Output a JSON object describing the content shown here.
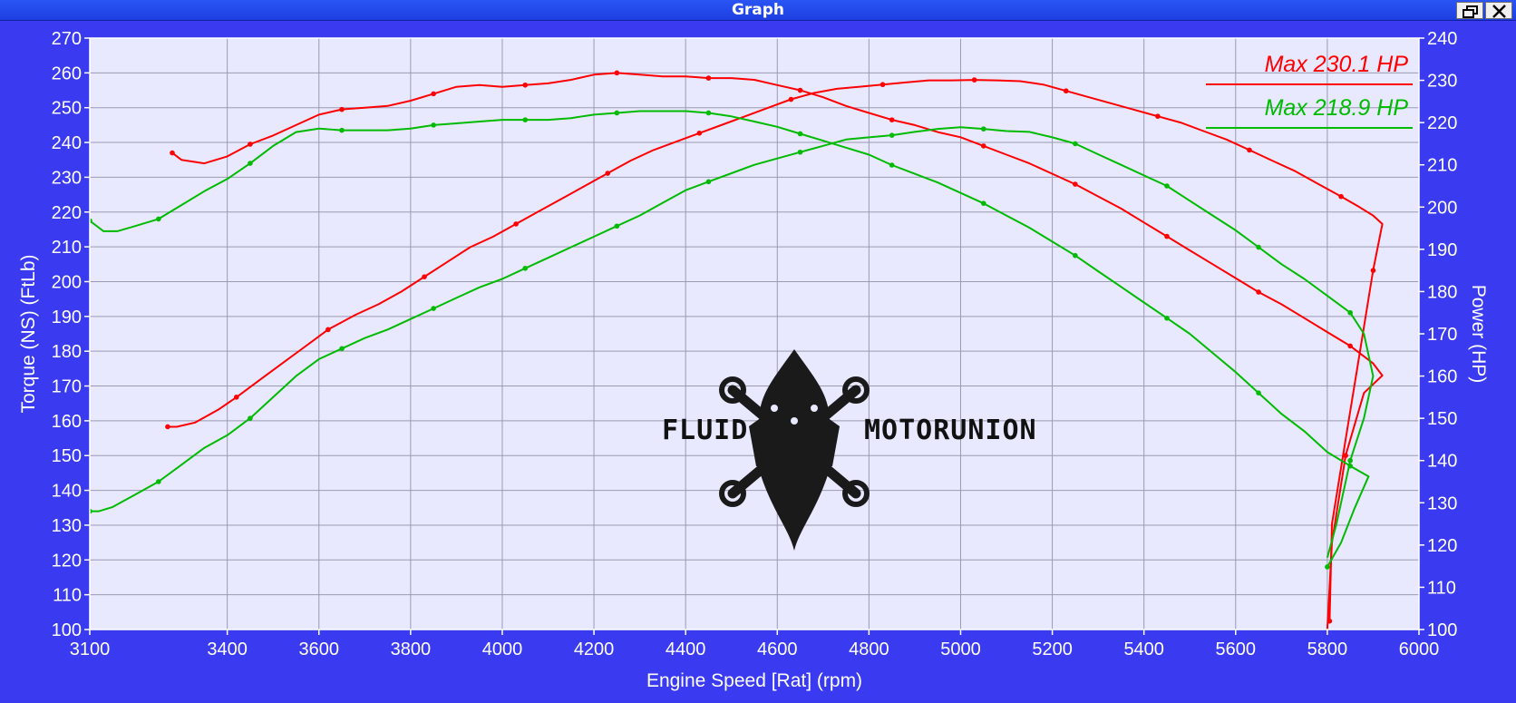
{
  "window": {
    "title": "Graph",
    "buttons": [
      {
        "name": "restore-button",
        "icon": "restore-icon"
      },
      {
        "name": "close-button",
        "icon": "close-icon"
      }
    ]
  },
  "watermark": {
    "left": "FLUID",
    "right": "MOTORUNION",
    "icon": "wrench-crown-logo-icon"
  },
  "chart_data": {
    "type": "line",
    "background": "#e8e8ff",
    "grid": true,
    "xlabel": "Engine Speed [Rat] (rpm)",
    "ylabel": "Torque (NS) (FtLb)",
    "y2label": "Power (HP)",
    "xlim": [
      3100,
      6000
    ],
    "ylim": [
      100,
      270
    ],
    "y2lim": [
      100,
      240
    ],
    "xticks": [
      3100,
      3400,
      3600,
      3800,
      4000,
      4200,
      4400,
      4600,
      4800,
      5000,
      5200,
      5400,
      5600,
      5800,
      6000
    ],
    "yticks": [
      100,
      110,
      120,
      130,
      140,
      150,
      160,
      170,
      180,
      190,
      200,
      210,
      220,
      230,
      240,
      250,
      260,
      270
    ],
    "y2ticks": [
      100,
      110,
      120,
      130,
      140,
      150,
      160,
      170,
      180,
      190,
      200,
      210,
      220,
      230,
      240
    ],
    "legend_position": "top-right",
    "legend": [
      {
        "label": "Max 230.1 HP",
        "color": "#ff0000"
      },
      {
        "label": "Max 218.9 HP",
        "color": "#00bb00"
      }
    ],
    "series": [
      {
        "color": "#ff0000",
        "quantity": "torque",
        "axis": "left",
        "x": [
          3280,
          3300,
          3350,
          3400,
          3450,
          3500,
          3550,
          3600,
          3650,
          3700,
          3750,
          3800,
          3850,
          3900,
          3950,
          4000,
          4050,
          4100,
          4150,
          4200,
          4250,
          4300,
          4350,
          4400,
          4450,
          4500,
          4550,
          4600,
          4650,
          4700,
          4750,
          4800,
          4850,
          4900,
          4950,
          5000,
          5050,
          5100,
          5150,
          5200,
          5250,
          5300,
          5350,
          5400,
          5450,
          5500,
          5550,
          5600,
          5650,
          5700,
          5750,
          5800,
          5850,
          5900,
          5920,
          5880,
          5840,
          5810,
          5800
        ],
        "y": [
          237,
          235,
          234,
          236,
          239.5,
          242,
          245,
          248,
          249.5,
          250,
          250.5,
          252,
          254,
          256,
          256.5,
          256,
          256.5,
          257,
          258,
          259.5,
          260,
          259.5,
          259,
          259,
          258.5,
          258.5,
          258,
          256.5,
          255,
          253,
          250.5,
          248.5,
          246.5,
          245,
          243,
          241.5,
          239,
          236.5,
          234,
          231,
          228,
          224.5,
          221,
          217,
          213,
          209,
          205,
          201,
          197,
          193.5,
          189.5,
          185.5,
          181.5,
          176.5,
          173,
          168,
          150,
          125,
          100
        ]
      },
      {
        "color": "#ff0000",
        "quantity": "power",
        "axis": "right",
        "x": [
          3270,
          3290,
          3330,
          3380,
          3420,
          3470,
          3520,
          3570,
          3620,
          3680,
          3730,
          3780,
          3830,
          3880,
          3930,
          3980,
          4030,
          4080,
          4130,
          4180,
          4230,
          4280,
          4330,
          4380,
          4430,
          4480,
          4530,
          4580,
          4630,
          4680,
          4730,
          4780,
          4830,
          4880,
          4930,
          4980,
          5030,
          5080,
          5130,
          5180,
          5230,
          5280,
          5330,
          5380,
          5430,
          5480,
          5530,
          5580,
          5630,
          5680,
          5730,
          5780,
          5830,
          5870,
          5900,
          5920,
          5900,
          5870,
          5840,
          5810,
          5805
        ],
        "y": [
          148,
          148,
          149,
          152,
          155,
          159,
          163,
          167,
          171,
          174.5,
          177,
          180,
          183.5,
          187,
          190.5,
          193,
          196,
          199,
          202,
          205,
          208,
          211,
          213.5,
          215.5,
          217.5,
          219.5,
          221.5,
          223.5,
          225.5,
          227,
          228,
          228.5,
          229,
          229.5,
          230,
          230,
          230.1,
          230,
          229.8,
          229,
          227.5,
          226,
          224.5,
          223,
          221.5,
          220,
          218,
          216,
          213.5,
          211,
          208.5,
          205.5,
          202.5,
          200,
          198,
          196,
          185,
          165,
          145,
          125,
          102
        ]
      },
      {
        "color": "#00bb00",
        "quantity": "torque",
        "axis": "left",
        "x": [
          3100,
          3130,
          3160,
          3200,
          3250,
          3300,
          3350,
          3400,
          3450,
          3500,
          3550,
          3600,
          3650,
          3700,
          3750,
          3800,
          3850,
          3900,
          3950,
          4000,
          4050,
          4100,
          4150,
          4200,
          4250,
          4300,
          4350,
          4400,
          4450,
          4500,
          4550,
          4600,
          4650,
          4700,
          4750,
          4800,
          4850,
          4900,
          4950,
          5000,
          5050,
          5100,
          5150,
          5200,
          5250,
          5300,
          5350,
          5400,
          5450,
          5500,
          5550,
          5600,
          5650,
          5700,
          5750,
          5800,
          5850,
          5890,
          5860,
          5830,
          5800
        ],
        "y": [
          217.5,
          214.5,
          214.5,
          216,
          218,
          222,
          226,
          229.5,
          234,
          239,
          243,
          244,
          243.5,
          243.5,
          243.5,
          244,
          245,
          245.5,
          246,
          246.5,
          246.5,
          246.5,
          247,
          248,
          248.5,
          249,
          249,
          249,
          248.5,
          247.5,
          246,
          244.5,
          242.5,
          240.5,
          238.5,
          236.5,
          233.5,
          231,
          228.5,
          225.5,
          222.5,
          219,
          215.5,
          211.5,
          207.5,
          203,
          198.5,
          194,
          189.5,
          185,
          179.5,
          174,
          168,
          162,
          157,
          151,
          147,
          144,
          135,
          125,
          118
        ]
      },
      {
        "color": "#00bb00",
        "quantity": "power",
        "axis": "right",
        "x": [
          3100,
          3120,
          3150,
          3200,
          3250,
          3300,
          3350,
          3400,
          3450,
          3500,
          3550,
          3600,
          3650,
          3700,
          3750,
          3800,
          3850,
          3900,
          3950,
          4000,
          4050,
          4100,
          4150,
          4200,
          4250,
          4300,
          4350,
          4400,
          4450,
          4500,
          4550,
          4600,
          4650,
          4700,
          4750,
          4800,
          4850,
          4900,
          4950,
          5000,
          5050,
          5100,
          5150,
          5200,
          5250,
          5300,
          5350,
          5400,
          5450,
          5500,
          5550,
          5600,
          5650,
          5700,
          5750,
          5800,
          5850,
          5880,
          5900,
          5880,
          5850,
          5820,
          5800
        ],
        "y": [
          128,
          128,
          129,
          132,
          135,
          139,
          143,
          146,
          150,
          155,
          160,
          164,
          166.5,
          169,
          171,
          173.5,
          176,
          178.5,
          181,
          183,
          185.5,
          188,
          190.5,
          193,
          195.5,
          198,
          201,
          204,
          206,
          208,
          210,
          211.5,
          213,
          214.5,
          216,
          216.5,
          217,
          217.8,
          218.5,
          218.9,
          218.5,
          218,
          217.8,
          216.5,
          215,
          212.5,
          210,
          207.5,
          205,
          201.5,
          198,
          194.5,
          190.5,
          186.5,
          183,
          179,
          175,
          170,
          160,
          150,
          140,
          125,
          117
        ]
      }
    ]
  }
}
